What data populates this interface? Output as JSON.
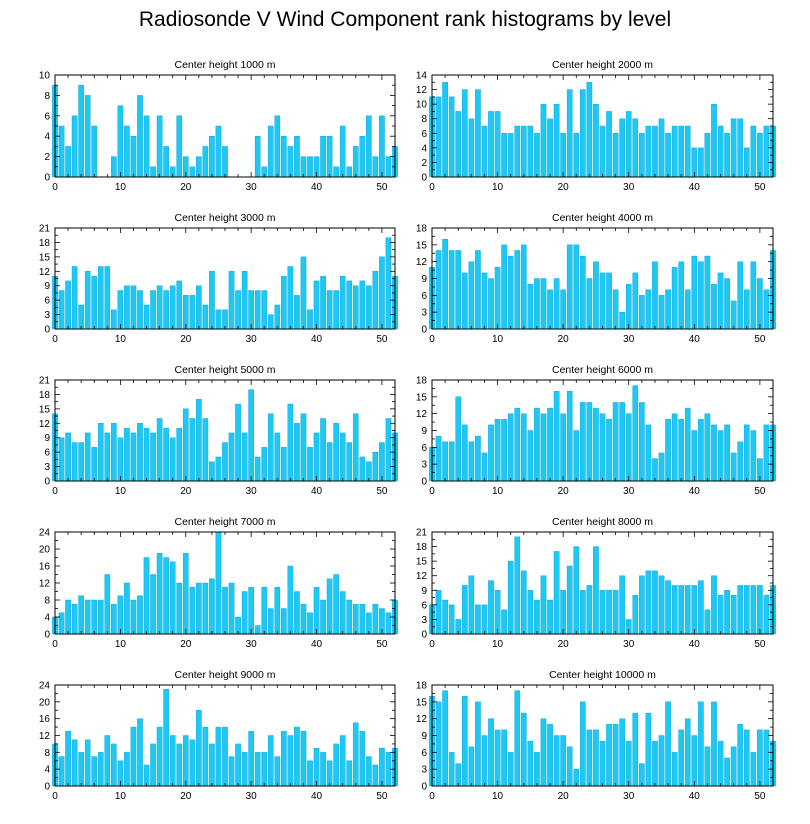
{
  "title": "Radiosonde V Wind Component rank histograms by level",
  "colors": {
    "bar": "#1ec8f5",
    "bar_edge": "#0a9fd0",
    "axis": "#000000",
    "background": "#ffffff"
  },
  "chart_data": [
    {
      "type": "bar",
      "title": "Center height 1000 m",
      "ylim": [
        0,
        10
      ],
      "yticks": [
        0,
        2,
        4,
        6,
        8,
        10
      ],
      "xlim": [
        0,
        52
      ],
      "xticks": [
        0,
        10,
        20,
        30,
        40,
        50
      ],
      "values": [
        9,
        5,
        3,
        6,
        9,
        8,
        5,
        0,
        0,
        2,
        7,
        5,
        4,
        8,
        6,
        1,
        6,
        3,
        1,
        6,
        2,
        1,
        2,
        3,
        4,
        5,
        3,
        0,
        0,
        0,
        0,
        4,
        1,
        5,
        6,
        4,
        3,
        4,
        2,
        2,
        2,
        4,
        4,
        1,
        5,
        1,
        3,
        4,
        6,
        2,
        6,
        2,
        3
      ]
    },
    {
      "type": "bar",
      "title": "Center height 2000 m",
      "ylim": [
        0,
        14
      ],
      "yticks": [
        0,
        2,
        4,
        6,
        8,
        10,
        12,
        14
      ],
      "xlim": [
        0,
        52
      ],
      "xticks": [
        0,
        10,
        20,
        30,
        40,
        50
      ],
      "values": [
        11,
        11,
        13,
        11,
        9,
        12,
        8,
        12,
        7,
        9,
        9,
        6,
        6,
        7,
        7,
        7,
        6,
        10,
        8,
        10,
        6,
        12,
        6,
        12,
        13,
        10,
        7,
        9,
        6,
        8,
        9,
        8,
        6,
        7,
        7,
        8,
        6,
        7,
        7,
        7,
        4,
        4,
        6,
        10,
        7,
        6,
        8,
        8,
        4,
        7,
        6,
        7,
        7
      ]
    },
    {
      "type": "bar",
      "title": "Center height 3000 m",
      "ylim": [
        0,
        21
      ],
      "yticks": [
        0,
        3,
        6,
        9,
        12,
        15,
        18,
        21
      ],
      "xlim": [
        0,
        52
      ],
      "xticks": [
        0,
        10,
        20,
        30,
        40,
        50
      ],
      "values": [
        11,
        8,
        10,
        13,
        5,
        12,
        11,
        13,
        13,
        4,
        8,
        9,
        9,
        8,
        5,
        8,
        9,
        8,
        9,
        10,
        7,
        7,
        9,
        5,
        12,
        4,
        4,
        12,
        8,
        12,
        8,
        8,
        8,
        3,
        5,
        11,
        13,
        7,
        15,
        4,
        10,
        11,
        8,
        8,
        11,
        10,
        9,
        10,
        9,
        12,
        15,
        19,
        11
      ]
    },
    {
      "type": "bar",
      "title": "Center height 4000 m",
      "ylim": [
        0,
        18
      ],
      "yticks": [
        0,
        3,
        6,
        9,
        12,
        15,
        18
      ],
      "xlim": [
        0,
        52
      ],
      "xticks": [
        0,
        10,
        20,
        30,
        40,
        50
      ],
      "values": [
        11,
        14,
        16,
        14,
        14,
        10,
        12,
        14,
        10,
        9,
        11,
        15,
        13,
        14,
        15,
        8,
        9,
        9,
        7,
        9,
        7,
        15,
        15,
        13,
        9,
        12,
        10,
        10,
        7,
        3,
        8,
        10,
        6,
        7,
        12,
        6,
        7,
        11,
        12,
        7,
        13,
        12,
        13,
        8,
        10,
        9,
        5,
        12,
        7,
        12,
        9,
        7,
        14
      ]
    },
    {
      "type": "bar",
      "title": "Center height 5000 m",
      "ylim": [
        0,
        21
      ],
      "yticks": [
        0,
        3,
        6,
        9,
        12,
        15,
        18,
        21
      ],
      "xlim": [
        0,
        52
      ],
      "xticks": [
        0,
        10,
        20,
        30,
        40,
        50
      ],
      "values": [
        14,
        9,
        10,
        8,
        8,
        10,
        7,
        12,
        10,
        12,
        9,
        11,
        10,
        12,
        11,
        10,
        13,
        11,
        9,
        11,
        15,
        13,
        17,
        13,
        4,
        5,
        8,
        10,
        16,
        10,
        19,
        5,
        7,
        14,
        10,
        7,
        16,
        12,
        14,
        7,
        10,
        13,
        8,
        12,
        10,
        8,
        14,
        5,
        4,
        6,
        8,
        13,
        10
      ]
    },
    {
      "type": "bar",
      "title": "Center height 6000 m",
      "ylim": [
        0,
        18
      ],
      "yticks": [
        0,
        3,
        6,
        9,
        12,
        15,
        18
      ],
      "xlim": [
        0,
        52
      ],
      "xticks": [
        0,
        10,
        20,
        30,
        40,
        50
      ],
      "values": [
        6,
        8,
        7,
        7,
        15,
        10,
        7,
        8,
        5,
        10,
        11,
        11,
        12,
        13,
        12,
        9,
        13,
        12,
        13,
        16,
        12,
        16,
        9,
        14,
        14,
        13,
        12,
        11,
        14,
        14,
        12,
        17,
        14,
        10,
        4,
        5,
        11,
        12,
        11,
        13,
        9,
        11,
        12,
        10,
        9,
        10,
        5,
        7,
        10,
        9,
        4,
        10,
        10
      ]
    },
    {
      "type": "bar",
      "title": "Center height 7000 m",
      "ylim": [
        0,
        24
      ],
      "yticks": [
        0,
        4,
        8,
        12,
        16,
        20,
        24
      ],
      "xlim": [
        0,
        52
      ],
      "xticks": [
        0,
        10,
        20,
        30,
        40,
        50
      ],
      "values": [
        4,
        5,
        8,
        7,
        9,
        8,
        8,
        8,
        14,
        7,
        9,
        12,
        8,
        9,
        18,
        14,
        19,
        18,
        17,
        12,
        19,
        11,
        12,
        12,
        13,
        24,
        11,
        12,
        4,
        10,
        11,
        2,
        11,
        6,
        11,
        6,
        16,
        10,
        7,
        5,
        11,
        8,
        13,
        14,
        10,
        8,
        7,
        7,
        5,
        7,
        6,
        5,
        8
      ]
    },
    {
      "type": "bar",
      "title": "Center height 8000 m",
      "ylim": [
        0,
        21
      ],
      "yticks": [
        0,
        3,
        6,
        9,
        12,
        15,
        18,
        21
      ],
      "xlim": [
        0,
        52
      ],
      "xticks": [
        0,
        10,
        20,
        30,
        40,
        50
      ],
      "values": [
        6,
        9,
        7,
        6,
        3,
        10,
        12,
        6,
        6,
        11,
        9,
        5,
        15,
        20,
        13,
        9,
        7,
        12,
        7,
        17,
        9,
        14,
        18,
        9,
        10,
        18,
        9,
        9,
        9,
        12,
        3,
        8,
        12,
        13,
        13,
        12,
        11,
        10,
        10,
        10,
        10,
        11,
        5,
        12,
        8,
        9,
        8,
        10,
        10,
        10,
        10,
        8,
        10
      ]
    },
    {
      "type": "bar",
      "title": "Center height 9000 m",
      "ylim": [
        0,
        24
      ],
      "yticks": [
        0,
        4,
        8,
        12,
        16,
        20,
        24
      ],
      "xlim": [
        0,
        52
      ],
      "xticks": [
        0,
        10,
        20,
        30,
        40,
        50
      ],
      "values": [
        10,
        7,
        13,
        11,
        8,
        11,
        7,
        8,
        12,
        10,
        6,
        8,
        14,
        16,
        5,
        10,
        14,
        23,
        12,
        10,
        12,
        11,
        18,
        14,
        10,
        14,
        14,
        7,
        10,
        8,
        13,
        8,
        8,
        12,
        7,
        13,
        12,
        14,
        13,
        6,
        9,
        8,
        6,
        10,
        12,
        6,
        15,
        13,
        7,
        5,
        9,
        8,
        9
      ]
    },
    {
      "type": "bar",
      "title": "Center height 10000 m",
      "ylim": [
        0,
        18
      ],
      "yticks": [
        0,
        3,
        6,
        9,
        12,
        15,
        18
      ],
      "xlim": [
        0,
        52
      ],
      "xticks": [
        0,
        10,
        20,
        30,
        40,
        50
      ],
      "values": [
        16,
        15,
        17,
        6,
        4,
        16,
        7,
        15,
        9,
        12,
        10,
        10,
        6,
        17,
        13,
        8,
        6,
        12,
        11,
        9,
        9,
        7,
        3,
        15,
        10,
        10,
        8,
        11,
        11,
        12,
        8,
        13,
        4,
        13,
        8,
        9,
        15,
        6,
        10,
        12,
        9,
        15,
        7,
        15,
        8,
        5,
        7,
        11,
        10,
        6,
        10,
        10,
        8
      ]
    }
  ]
}
